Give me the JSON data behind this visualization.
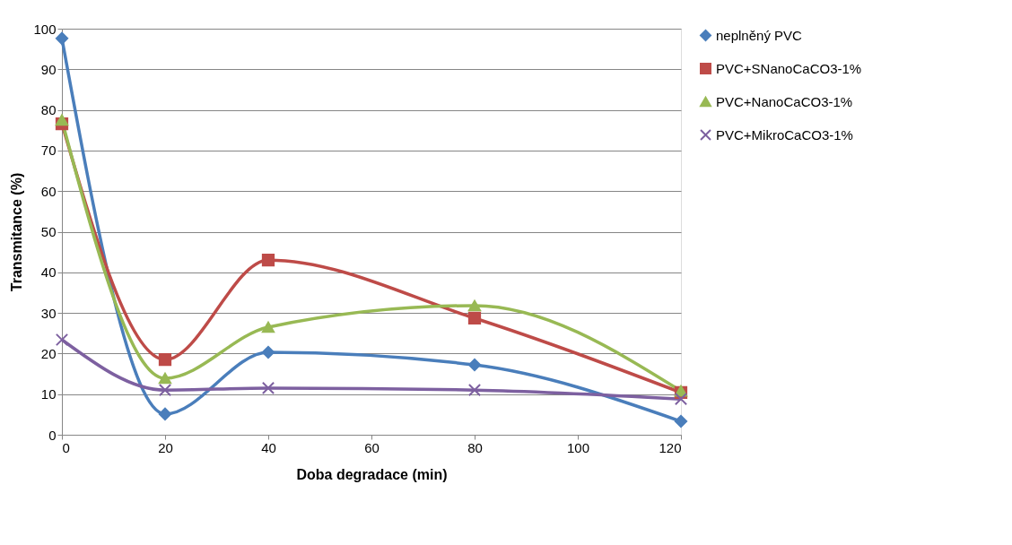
{
  "chart_data": {
    "type": "line",
    "xlabel": "Doba degradace (min)",
    "ylabel": "Transmitance (%)",
    "x": [
      0,
      20,
      40,
      80,
      120
    ],
    "series": [
      {
        "name": "neplněný PVC",
        "color": "#4a7ebb",
        "marker": "diamond",
        "values": [
          97.6,
          5.1,
          20.3,
          17.2,
          3.3
        ]
      },
      {
        "name": "PVC+SNanoCaCO3-1%",
        "color": "#be4b48",
        "marker": "square",
        "values": [
          76.6,
          18.5,
          43,
          28.7,
          10.4
        ]
      },
      {
        "name": "PVC+NanoCaCO3-1%",
        "color": "#98b954",
        "marker": "triangle",
        "values": [
          77.5,
          13.9,
          26.5,
          31.8,
          10.8
        ]
      },
      {
        "name": "PVC+MikroCaCO3-1%",
        "color": "#7d60a0",
        "marker": "cross",
        "values": [
          23.4,
          11,
          11.5,
          11,
          8.8
        ]
      }
    ],
    "xlim": [
      0,
      120
    ],
    "xticks": [
      0,
      20,
      40,
      60,
      80,
      100,
      120
    ],
    "ylim": [
      0,
      100
    ],
    "yticks": [
      0,
      10,
      20,
      30,
      40,
      50,
      60,
      70,
      80,
      90,
      100
    ],
    "grid": "y",
    "legend": "right",
    "line_style": "solid"
  }
}
